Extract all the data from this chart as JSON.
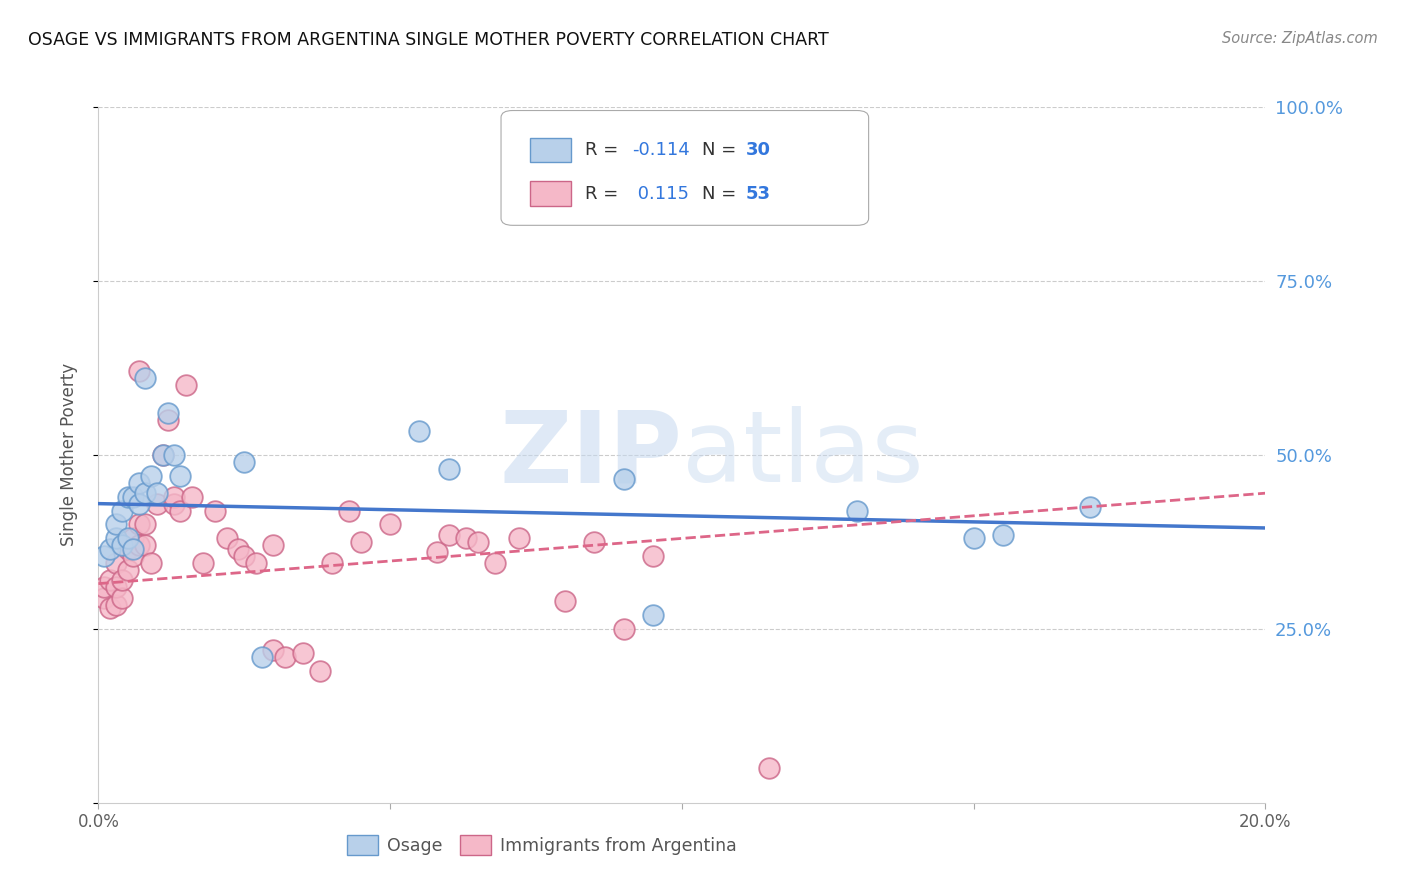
{
  "title": "OSAGE VS IMMIGRANTS FROM ARGENTINA SINGLE MOTHER POVERTY CORRELATION CHART",
  "source": "Source: ZipAtlas.com",
  "ylabel": "Single Mother Poverty",
  "xlim": [
    0.0,
    0.2
  ],
  "ylim": [
    0.0,
    1.0
  ],
  "osage_color": "#b8d0ea",
  "osage_edge_color": "#6699cc",
  "argentina_color": "#f5b8c8",
  "argentina_edge_color": "#cc6688",
  "osage_line_color": "#4477cc",
  "argentina_line_color": "#dd6688",
  "watermark_color": "#ccddf0",
  "background_color": "#ffffff",
  "grid_color": "#cccccc",
  "right_axis_color": "#5599dd",
  "legend_r_color": "#222222",
  "legend_val_color": "#3377dd",
  "legend_n_color": "#222222",
  "legend_nval_color": "#3377dd",
  "osage_x": [
    0.001,
    0.002,
    0.003,
    0.003,
    0.004,
    0.004,
    0.005,
    0.005,
    0.006,
    0.006,
    0.007,
    0.007,
    0.008,
    0.008,
    0.009,
    0.01,
    0.011,
    0.012,
    0.013,
    0.014,
    0.025,
    0.028,
    0.055,
    0.06,
    0.09,
    0.095,
    0.13,
    0.15,
    0.155,
    0.17
  ],
  "osage_y": [
    0.355,
    0.365,
    0.38,
    0.4,
    0.42,
    0.37,
    0.44,
    0.38,
    0.44,
    0.365,
    0.46,
    0.43,
    0.61,
    0.445,
    0.47,
    0.445,
    0.5,
    0.56,
    0.5,
    0.47,
    0.49,
    0.21,
    0.535,
    0.48,
    0.465,
    0.27,
    0.42,
    0.38,
    0.385,
    0.425
  ],
  "argentina_x": [
    0.001,
    0.001,
    0.002,
    0.002,
    0.003,
    0.003,
    0.003,
    0.004,
    0.004,
    0.005,
    0.005,
    0.006,
    0.006,
    0.007,
    0.007,
    0.007,
    0.008,
    0.008,
    0.009,
    0.01,
    0.011,
    0.012,
    0.013,
    0.013,
    0.014,
    0.015,
    0.016,
    0.018,
    0.02,
    0.022,
    0.024,
    0.025,
    0.027,
    0.03,
    0.03,
    0.032,
    0.035,
    0.038,
    0.04,
    0.043,
    0.045,
    0.05,
    0.058,
    0.06,
    0.063,
    0.065,
    0.068,
    0.072,
    0.08,
    0.085,
    0.09,
    0.095,
    0.115
  ],
  "argentina_y": [
    0.295,
    0.31,
    0.32,
    0.28,
    0.285,
    0.31,
    0.345,
    0.295,
    0.32,
    0.335,
    0.365,
    0.355,
    0.38,
    0.4,
    0.37,
    0.62,
    0.37,
    0.4,
    0.345,
    0.43,
    0.5,
    0.55,
    0.43,
    0.44,
    0.42,
    0.6,
    0.44,
    0.345,
    0.42,
    0.38,
    0.365,
    0.355,
    0.345,
    0.37,
    0.22,
    0.21,
    0.215,
    0.19,
    0.345,
    0.42,
    0.375,
    0.4,
    0.36,
    0.385,
    0.38,
    0.375,
    0.345,
    0.38,
    0.29,
    0.375,
    0.25,
    0.355,
    0.05
  ],
  "osage_trend_x": [
    0.0,
    0.2
  ],
  "osage_trend_y": [
    0.43,
    0.395
  ],
  "argentina_trend_x": [
    0.0,
    0.2
  ],
  "argentina_trend_y": [
    0.315,
    0.445
  ]
}
